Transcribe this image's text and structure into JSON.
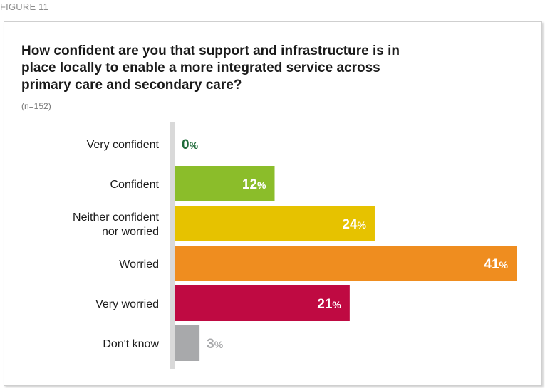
{
  "figure_label": "FIGURE 11",
  "title": "How confident are you that support and infrastructure is in place locally to enable a more integrated service across primary care and secondary care?",
  "sample": "(n=152)",
  "chart_data": {
    "type": "bar",
    "orientation": "horizontal",
    "categories": [
      [
        "Very confident"
      ],
      [
        "Confident"
      ],
      [
        "Neither confident",
        "nor worried"
      ],
      [
        "Worried"
      ],
      [
        "Very worried"
      ],
      [
        "Don't know"
      ]
    ],
    "values": [
      0,
      12,
      24,
      41,
      21,
      3
    ],
    "colors": [
      "#1f6b3a",
      "#8bbd2a",
      "#e6c200",
      "#ef8d1f",
      "#bf0a42",
      "#a8a9ab"
    ],
    "value_unit": "%",
    "label_position": [
      "outside",
      "inside",
      "inside",
      "inside",
      "inside",
      "outside"
    ],
    "xlim": [
      0,
      41
    ],
    "grid": false,
    "axis_color": "#d9d9d9"
  }
}
